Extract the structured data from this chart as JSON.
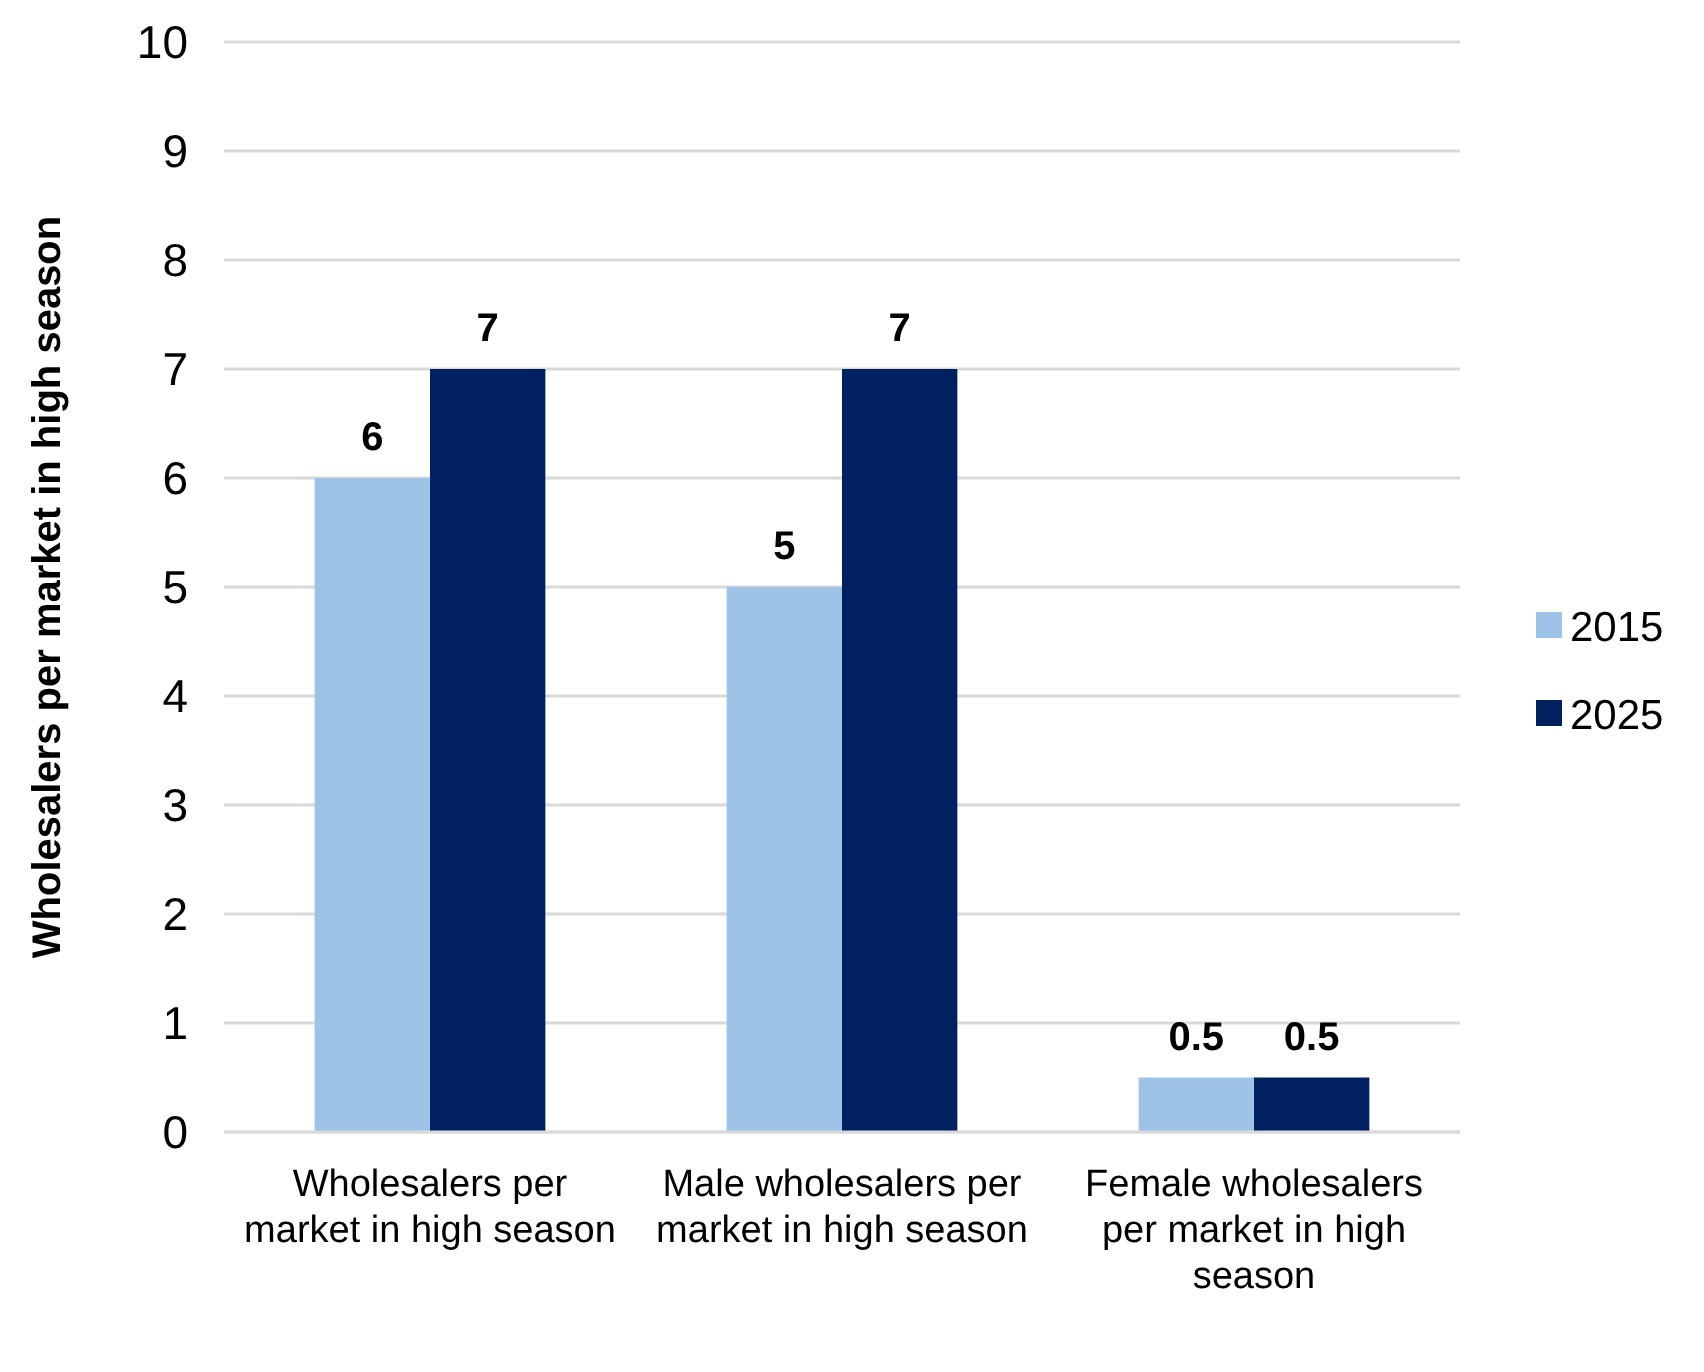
{
  "chart_data": {
    "type": "bar",
    "ylabel": "Wholesalers per market in high season",
    "categories": [
      "Wholesalers per market in high season",
      "Male wholesalers per market in high season",
      "Female wholesalers per market in high season"
    ],
    "series": [
      {
        "name": "2015",
        "color": "#9dc3e6",
        "values": [
          6,
          5,
          0.5
        ]
      },
      {
        "name": "2025",
        "color": "#002060",
        "values": [
          7,
          7,
          0.5
        ]
      }
    ],
    "ylim": [
      0,
      10
    ],
    "yticks": [
      0,
      1,
      2,
      3,
      4,
      5,
      6,
      7,
      8,
      9,
      10
    ],
    "grid": "y",
    "legend": "right",
    "data_labels": true
  }
}
